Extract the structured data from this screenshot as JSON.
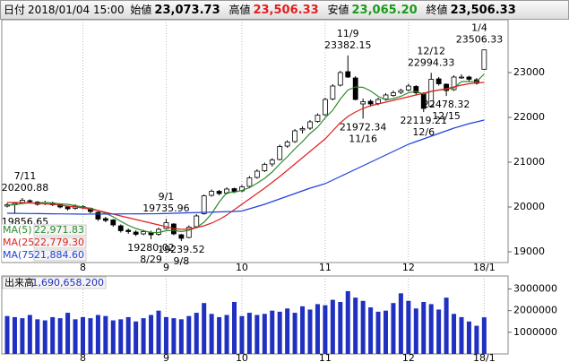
{
  "header": {
    "date_label": "日付",
    "date": "2018/01/04 15:00",
    "open_label": "始値",
    "open": "23,073.73",
    "high_label": "高値",
    "high": "23,506.33",
    "low_label": "安値",
    "low": "23,065.20",
    "close_label": "終値",
    "close": "23,506.33"
  },
  "chart_data": [
    {
      "type": "candlestick",
      "categories": [
        null,
        null,
        null,
        null,
        null,
        null,
        null,
        null,
        null,
        null,
        "8",
        null,
        null,
        null,
        null,
        null,
        null,
        null,
        null,
        null,
        null,
        "9",
        null,
        null,
        null,
        null,
        null,
        null,
        null,
        null,
        null,
        "10",
        null,
        null,
        null,
        null,
        null,
        null,
        null,
        null,
        null,
        null,
        "11",
        null,
        null,
        null,
        null,
        null,
        null,
        null,
        null,
        null,
        null,
        "12",
        null,
        null,
        null,
        null,
        null,
        null,
        null,
        null,
        null,
        "18/1"
      ],
      "ohlc": [
        [
          20020,
          20090,
          19990,
          20050
        ],
        [
          20050,
          20110,
          19856.65,
          20080
        ],
        [
          20090,
          20200.88,
          20060,
          20150
        ],
        [
          20140,
          20170,
          20090,
          20120
        ],
        [
          20110,
          20130,
          20030,
          20060
        ],
        [
          20070,
          20140,
          20040,
          20100
        ],
        [
          20090,
          20120,
          20020,
          20050
        ],
        [
          20060,
          20080,
          19970,
          20000
        ],
        [
          20000,
          20030,
          19920,
          19960
        ],
        [
          19970,
          20060,
          19940,
          20020
        ],
        [
          20010,
          20040,
          19950,
          19980
        ],
        [
          19970,
          19990,
          19860,
          19900
        ],
        [
          19880,
          19900,
          19690,
          19730
        ],
        [
          19740,
          19780,
          19660,
          19700
        ],
        [
          19710,
          19730,
          19560,
          19600
        ],
        [
          19580,
          19610,
          19430,
          19470
        ],
        [
          19480,
          19520,
          19400,
          19450
        ],
        [
          19440,
          19480,
          19350,
          19390
        ],
        [
          19400,
          19490,
          19370,
          19450
        ],
        [
          19430,
          19470,
          19280.02,
          19380
        ],
        [
          19390,
          19540,
          19360,
          19500
        ],
        [
          19520,
          19735.96,
          19500,
          19650
        ],
        [
          19620,
          19640,
          19370,
          19400
        ],
        [
          19380,
          19400,
          19239.52,
          19300
        ],
        [
          19320,
          19590,
          19300,
          19550
        ],
        [
          19560,
          19840,
          19540,
          19800
        ],
        [
          19850,
          20280,
          19830,
          20250
        ],
        [
          20260,
          20390,
          20230,
          20350
        ],
        [
          20350,
          20380,
          20260,
          20300
        ],
        [
          20310,
          20440,
          20280,
          20400
        ],
        [
          20410,
          20430,
          20310,
          20350
        ],
        [
          20360,
          20490,
          20330,
          20450
        ],
        [
          20460,
          20690,
          20440,
          20650
        ],
        [
          20660,
          20840,
          20630,
          20800
        ],
        [
          20810,
          20990,
          20780,
          20950
        ],
        [
          20960,
          21090,
          20900,
          21050
        ],
        [
          21060,
          21390,
          21040,
          21350
        ],
        [
          21360,
          21490,
          21320,
          21450
        ],
        [
          21460,
          21740,
          21430,
          21700
        ],
        [
          21720,
          21800,
          21640,
          21750
        ],
        [
          21760,
          21940,
          21720,
          21900
        ],
        [
          21910,
          22090,
          21880,
          22050
        ],
        [
          22060,
          22440,
          22030,
          22400
        ],
        [
          22410,
          22740,
          22380,
          22700
        ],
        [
          22720,
          23040,
          22690,
          23000
        ],
        [
          23020,
          23382.15,
          22880,
          22900
        ],
        [
          22880,
          22920,
          22380,
          22400
        ],
        [
          22300,
          22420,
          21972.34,
          22350
        ],
        [
          22360,
          22400,
          22240,
          22300
        ],
        [
          22310,
          22440,
          22270,
          22400
        ],
        [
          22410,
          22540,
          22370,
          22500
        ],
        [
          22490,
          22600,
          22460,
          22550
        ],
        [
          22560,
          22640,
          22520,
          22600
        ],
        [
          22610,
          22750,
          22580,
          22700
        ],
        [
          22690,
          22720,
          22500,
          22550
        ],
        [
          22530,
          22560,
          22119.21,
          22200
        ],
        [
          22250,
          22994.33,
          22230,
          22850
        ],
        [
          22860,
          22900,
          22710,
          22750
        ],
        [
          22740,
          22760,
          22478.32,
          22600
        ],
        [
          22620,
          22940,
          22590,
          22900
        ],
        [
          22890,
          22960,
          22860,
          22900
        ],
        [
          22900,
          22930,
          22810,
          22850
        ],
        [
          22840,
          22880,
          22730,
          22760
        ],
        [
          23073.73,
          23506.33,
          23065.2,
          23506.33
        ]
      ],
      "series": [
        {
          "name": "MA(5)",
          "color": "#2e8b2e",
          "legend_value": "22,971.83",
          "values": [
            20040,
            20050,
            20080,
            20090,
            20090,
            20100,
            20090,
            20070,
            20060,
            20030,
            20000,
            19970,
            19920,
            19860,
            19780,
            19680,
            19590,
            19520,
            19470,
            19430,
            19430,
            19470,
            19480,
            19450,
            19480,
            19540,
            19660,
            19850,
            20110,
            20320,
            20330,
            20370,
            20430,
            20530,
            20640,
            20780,
            20960,
            21120,
            21300,
            21460,
            21640,
            21780,
            21990,
            22160,
            22410,
            22610,
            22680,
            22670,
            22590,
            22470,
            22390,
            22420,
            22470,
            22550,
            22580,
            22520,
            22580,
            22610,
            22630,
            22660,
            22800,
            22800,
            22800,
            22970
          ]
        },
        {
          "name": "MA(25)",
          "color": "#e02020",
          "legend_value": "22,779.30",
          "values": [
            20100,
            20100,
            20100,
            20090,
            20080,
            20070,
            20060,
            20040,
            20020,
            20000,
            19980,
            19950,
            19920,
            19880,
            19840,
            19800,
            19760,
            19720,
            19680,
            19640,
            19600,
            19560,
            19520,
            19500,
            19510,
            19540,
            19580,
            19640,
            19720,
            19820,
            19940,
            20060,
            20180,
            20300,
            20420,
            20550,
            20680,
            20820,
            20960,
            21100,
            21240,
            21380,
            21520,
            21700,
            21880,
            22020,
            22120,
            22200,
            22260,
            22300,
            22340,
            22380,
            22420,
            22460,
            22500,
            22540,
            22580,
            22610,
            22640,
            22680,
            22720,
            22750,
            22770,
            22780
          ]
        },
        {
          "name": "MA(75)",
          "color": "#2040e0",
          "legend_value": "21,884.60",
          "values": [
            19860,
            19858,
            19856,
            19854,
            19852,
            19850,
            19848,
            19846,
            19844,
            19842,
            19840,
            19841,
            19842,
            19843,
            19844,
            19845,
            19846,
            19847,
            19848,
            19849,
            19850,
            19855,
            19860,
            19865,
            19870,
            19875,
            19880,
            19885,
            19890,
            19895,
            19900,
            19910,
            19960,
            20010,
            20060,
            20120,
            20180,
            20240,
            20300,
            20360,
            20420,
            20470,
            20520,
            20600,
            20680,
            20760,
            20840,
            20920,
            21000,
            21080,
            21160,
            21240,
            21320,
            21400,
            21460,
            21520,
            21580,
            21640,
            21700,
            21760,
            21810,
            21860,
            21900,
            21940
          ]
        }
      ],
      "annotations": [
        {
          "date": "7/11",
          "value": 20200.88
        },
        {
          "value": 19856.65
        },
        {
          "date": "9/1",
          "value": 19735.96
        },
        {
          "date": "8/29",
          "value": 19280.02
        },
        {
          "date": "9/8",
          "value": 19239.52
        },
        {
          "date": "11/9",
          "value": 23382.15
        },
        {
          "date": "11/16",
          "value": 21972.34
        },
        {
          "date": "12/12",
          "value": 22994.33
        },
        {
          "date": "12/6",
          "value": 22119.21
        },
        {
          "date": "12/15",
          "value": 22478.32
        },
        {
          "date": "1/4",
          "value": 23506.33
        }
      ],
      "up_color": "#ffffff",
      "down_color": "#000000",
      "ylim": [
        18760,
        24180
      ],
      "yticks": [
        19000,
        20000,
        21000,
        22000,
        23000
      ],
      "grid": true
    },
    {
      "type": "bar",
      "title": "出来高",
      "title_value": "1,690,658.200",
      "color": "#2030c0",
      "categories": [
        null,
        null,
        null,
        null,
        null,
        null,
        null,
        null,
        null,
        null,
        "8",
        null,
        null,
        null,
        null,
        null,
        null,
        null,
        null,
        null,
        null,
        "9",
        null,
        null,
        null,
        null,
        null,
        null,
        null,
        null,
        null,
        "10",
        null,
        null,
        null,
        null,
        null,
        null,
        null,
        null,
        null,
        null,
        "11",
        null,
        null,
        null,
        null,
        null,
        null,
        null,
        null,
        null,
        null,
        "12",
        null,
        null,
        null,
        null,
        null,
        null,
        null,
        null,
        null,
        "18/1"
      ],
      "values": [
        1750000,
        1700000,
        1650000,
        1800000,
        1600000,
        1550000,
        1700000,
        1650000,
        1900000,
        1600000,
        1700000,
        1650000,
        1800000,
        1750000,
        1550000,
        1600000,
        1700000,
        1500000,
        1650000,
        1800000,
        2000000,
        1700000,
        1650000,
        1600000,
        1750000,
        1900000,
        2350000,
        1850000,
        1700000,
        1800000,
        2400000,
        1750000,
        1900000,
        1800000,
        1850000,
        2000000,
        1950000,
        2100000,
        1900000,
        2200000,
        2050000,
        2300000,
        2250000,
        2500000,
        2400000,
        2900000,
        2600000,
        2450000,
        2150000,
        1950000,
        2000000,
        2350000,
        2800000,
        2450000,
        2100000,
        2400000,
        2300000,
        2050000,
        2600000,
        1850000,
        1700000,
        1500000,
        1300000,
        1690658.2
      ],
      "ylim": [
        0,
        3600000
      ],
      "yticks": [
        1000000,
        2000000,
        3000000
      ],
      "grid": true
    }
  ]
}
